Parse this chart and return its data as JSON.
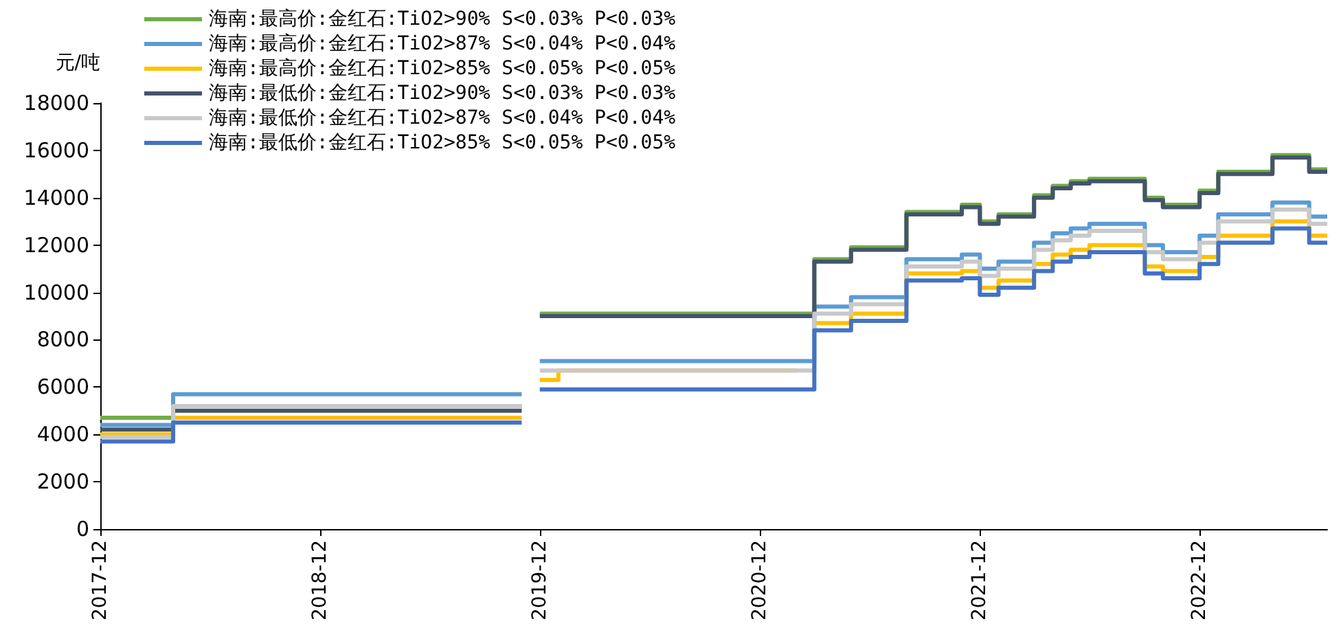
{
  "chart_data": {
    "type": "step",
    "ylabel": "元/吨",
    "legend": "top left",
    "grid": false,
    "x": [
      "2017-12",
      "2018-04",
      "2019-10",
      "2019-11",
      "2019-12",
      "2020-01",
      "2021-02",
      "2021-03",
      "2021-05",
      "2021-08",
      "2021-11",
      "2021-12",
      "2022-01",
      "2022-03",
      "2022-04",
      "2022-05",
      "2022-06",
      "2022-08",
      "2022-09",
      "2022-10",
      "2022-12",
      "2023-01",
      "2023-04",
      "2023-06",
      "2023-07"
    ],
    "xlim": [
      "2017-12",
      "2023-07"
    ],
    "xticks": [
      "2017-12",
      "2018-12",
      "2019-12",
      "2020-12",
      "2021-12",
      "2022-12"
    ],
    "ylim": [
      0,
      18000
    ],
    "yticks": [
      0,
      2000,
      4000,
      6000,
      8000,
      10000,
      12000,
      14000,
      16000,
      18000
    ],
    "series": [
      {
        "name": "海南:最高价:金红石:TiO2>90% S<0.03% P<0.03%",
        "color": "#70ad47",
        "values": [
          4700,
          5200,
          5200,
          null,
          9100,
          9100,
          9100,
          11400,
          11900,
          13400,
          13700,
          13000,
          13300,
          14100,
          14500,
          14700,
          14800,
          14800,
          14000,
          13700,
          14300,
          15100,
          15800,
          15200,
          15200
        ]
      },
      {
        "name": "海南:最高价:金红石:TiO2>87% S<0.04% P<0.04%",
        "color": "#5b9bd5",
        "values": [
          4400,
          5700,
          5700,
          null,
          7100,
          7100,
          7100,
          9400,
          9800,
          11400,
          11600,
          11000,
          11300,
          12100,
          12500,
          12700,
          12900,
          12900,
          12000,
          11700,
          12400,
          13300,
          13800,
          13200,
          13200
        ]
      },
      {
        "name": "海南:最高价:金红石:TiO2>85% S<0.05% P<0.05%",
        "color": "#ffc000",
        "values": [
          4000,
          4700,
          4700,
          null,
          6300,
          6700,
          null,
          8700,
          9100,
          10800,
          10900,
          10200,
          10500,
          11200,
          11600,
          11800,
          12000,
          12000,
          11100,
          10900,
          11500,
          12400,
          13000,
          12400,
          12400
        ]
      },
      {
        "name": "海南:最低价:金红石:TiO2>90% S<0.03% P<0.03%",
        "color": "#44546a",
        "values": [
          4200,
          5000,
          5000,
          null,
          9000,
          9000,
          9000,
          11300,
          11800,
          13300,
          13600,
          12900,
          13200,
          14000,
          14400,
          14600,
          14700,
          14700,
          13900,
          13600,
          14200,
          15000,
          15700,
          15100,
          15100
        ]
      },
      {
        "name": "海南:最低价:金红石:TiO2>87% S<0.04% P<0.04%",
        "color": "#c9c9c9",
        "values": [
          3900,
          5200,
          5200,
          null,
          6700,
          6700,
          6700,
          9100,
          9500,
          11100,
          11300,
          10700,
          11000,
          11800,
          12200,
          12400,
          12600,
          12600,
          11700,
          11400,
          12100,
          13000,
          13500,
          12900,
          12900
        ]
      },
      {
        "name": "海南:最低价:金红石:TiO2>85% S<0.05% P<0.05%",
        "color": "#4472c4",
        "values": [
          3700,
          4500,
          4500,
          null,
          5900,
          5900,
          5900,
          8400,
          8800,
          10500,
          10600,
          9900,
          10200,
          10900,
          11300,
          11500,
          11700,
          11700,
          10800,
          10600,
          11200,
          12100,
          12700,
          12100,
          12100
        ]
      }
    ]
  }
}
